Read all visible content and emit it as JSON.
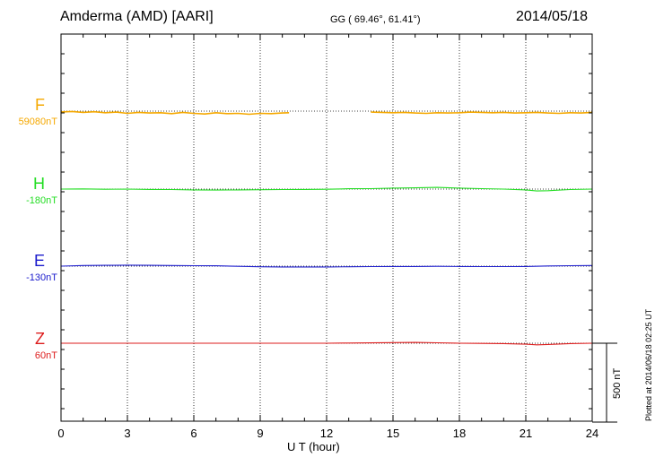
{
  "header": {
    "station": "Amderma (AMD)  [AARI]",
    "coords": "GG ( 69.46°,  61.41°)",
    "date": "2014/05/18"
  },
  "footer": {
    "plotted": "Plotted at 2014/06/18 02:25 UT",
    "scale": "500 nT"
  },
  "chart_data": {
    "type": "line",
    "title": "Amderma (AMD)  [AARI]",
    "xlabel": "U T (hour)",
    "ylabel": "",
    "xlim": [
      0,
      24
    ],
    "x_ticks": [
      "0",
      "3",
      "6",
      "9",
      "12",
      "15",
      "18",
      "21",
      "24"
    ],
    "scale_bar_nT": 500,
    "grid": true,
    "series": [
      {
        "name": "F",
        "baseline": "59080nT",
        "color": "#f5a800",
        "gaps": [
          [
            10.3,
            14.0
          ]
        ],
        "points": [
          [
            0,
            -5
          ],
          [
            0.5,
            -2
          ],
          [
            1,
            -8
          ],
          [
            1.5,
            -4
          ],
          [
            2,
            -10
          ],
          [
            2.5,
            -6
          ],
          [
            3,
            -14
          ],
          [
            3.5,
            -8
          ],
          [
            4,
            -12
          ],
          [
            4.5,
            -10
          ],
          [
            5,
            -16
          ],
          [
            5.5,
            -8
          ],
          [
            6,
            -14
          ],
          [
            6.5,
            -18
          ],
          [
            7,
            -10
          ],
          [
            7.5,
            -16
          ],
          [
            8,
            -14
          ],
          [
            8.5,
            -20
          ],
          [
            9,
            -14
          ],
          [
            9.5,
            -16
          ],
          [
            10,
            -12
          ],
          [
            10.3,
            -10
          ],
          [
            14.0,
            -6
          ],
          [
            14.5,
            -8
          ],
          [
            15,
            -10
          ],
          [
            15.5,
            -8
          ],
          [
            16,
            -12
          ],
          [
            16.5,
            -14
          ],
          [
            17,
            -10
          ],
          [
            17.5,
            -12
          ],
          [
            18,
            -10
          ],
          [
            18.5,
            -6
          ],
          [
            19,
            -8
          ],
          [
            19.5,
            -10
          ],
          [
            20,
            -8
          ],
          [
            20.5,
            -12
          ],
          [
            21,
            -10
          ],
          [
            21.5,
            -8
          ],
          [
            22,
            -12
          ],
          [
            22.5,
            -14
          ],
          [
            23,
            -10
          ],
          [
            23.5,
            -12
          ],
          [
            24,
            -8
          ]
        ]
      },
      {
        "name": "H",
        "baseline": "-180nT",
        "color": "#22dd22",
        "points": [
          [
            0,
            0
          ],
          [
            1,
            1
          ],
          [
            2,
            -1
          ],
          [
            3,
            0
          ],
          [
            4,
            -2
          ],
          [
            5,
            -3
          ],
          [
            6,
            -5
          ],
          [
            7,
            -6
          ],
          [
            8,
            -5
          ],
          [
            9,
            -4
          ],
          [
            10,
            -3
          ],
          [
            11,
            -2
          ],
          [
            12,
            -1
          ],
          [
            13,
            2
          ],
          [
            14,
            3
          ],
          [
            15,
            6
          ],
          [
            16,
            8
          ],
          [
            17,
            11
          ],
          [
            18,
            6
          ],
          [
            19,
            3
          ],
          [
            20,
            0
          ],
          [
            21,
            -5
          ],
          [
            21.5,
            -12
          ],
          [
            22,
            -10
          ],
          [
            23,
            -3
          ],
          [
            24,
            0
          ]
        ]
      },
      {
        "name": "E",
        "baseline": "-130nT",
        "color": "#1a1acc",
        "points": [
          [
            0,
            0
          ],
          [
            1,
            4
          ],
          [
            2,
            5
          ],
          [
            3,
            6
          ],
          [
            4,
            5
          ],
          [
            5,
            4
          ],
          [
            6,
            3
          ],
          [
            7,
            2
          ],
          [
            8,
            -1
          ],
          [
            9,
            -4
          ],
          [
            10,
            -5
          ],
          [
            11,
            -5
          ],
          [
            12,
            -5
          ],
          [
            13,
            -4
          ],
          [
            14,
            -3
          ],
          [
            15,
            -2
          ],
          [
            16,
            -2
          ],
          [
            17,
            -1
          ],
          [
            18,
            -2
          ],
          [
            19,
            -3
          ],
          [
            20,
            -3
          ],
          [
            21,
            -2
          ],
          [
            22,
            1
          ],
          [
            23,
            3
          ],
          [
            24,
            4
          ]
        ]
      },
      {
        "name": "Z",
        "baseline": "60nT",
        "color": "#dd1c1c",
        "points": [
          [
            0,
            0
          ],
          [
            2,
            0
          ],
          [
            4,
            0
          ],
          [
            6,
            0
          ],
          [
            8,
            0
          ],
          [
            10,
            0
          ],
          [
            12,
            0
          ],
          [
            13,
            1
          ],
          [
            14,
            2
          ],
          [
            15,
            4
          ],
          [
            16,
            5
          ],
          [
            17,
            3
          ],
          [
            18,
            0
          ],
          [
            19,
            -1
          ],
          [
            20,
            -2
          ],
          [
            21,
            -6
          ],
          [
            21.5,
            -10
          ],
          [
            22,
            -8
          ],
          [
            23,
            -2
          ],
          [
            24,
            0
          ]
        ]
      }
    ]
  }
}
